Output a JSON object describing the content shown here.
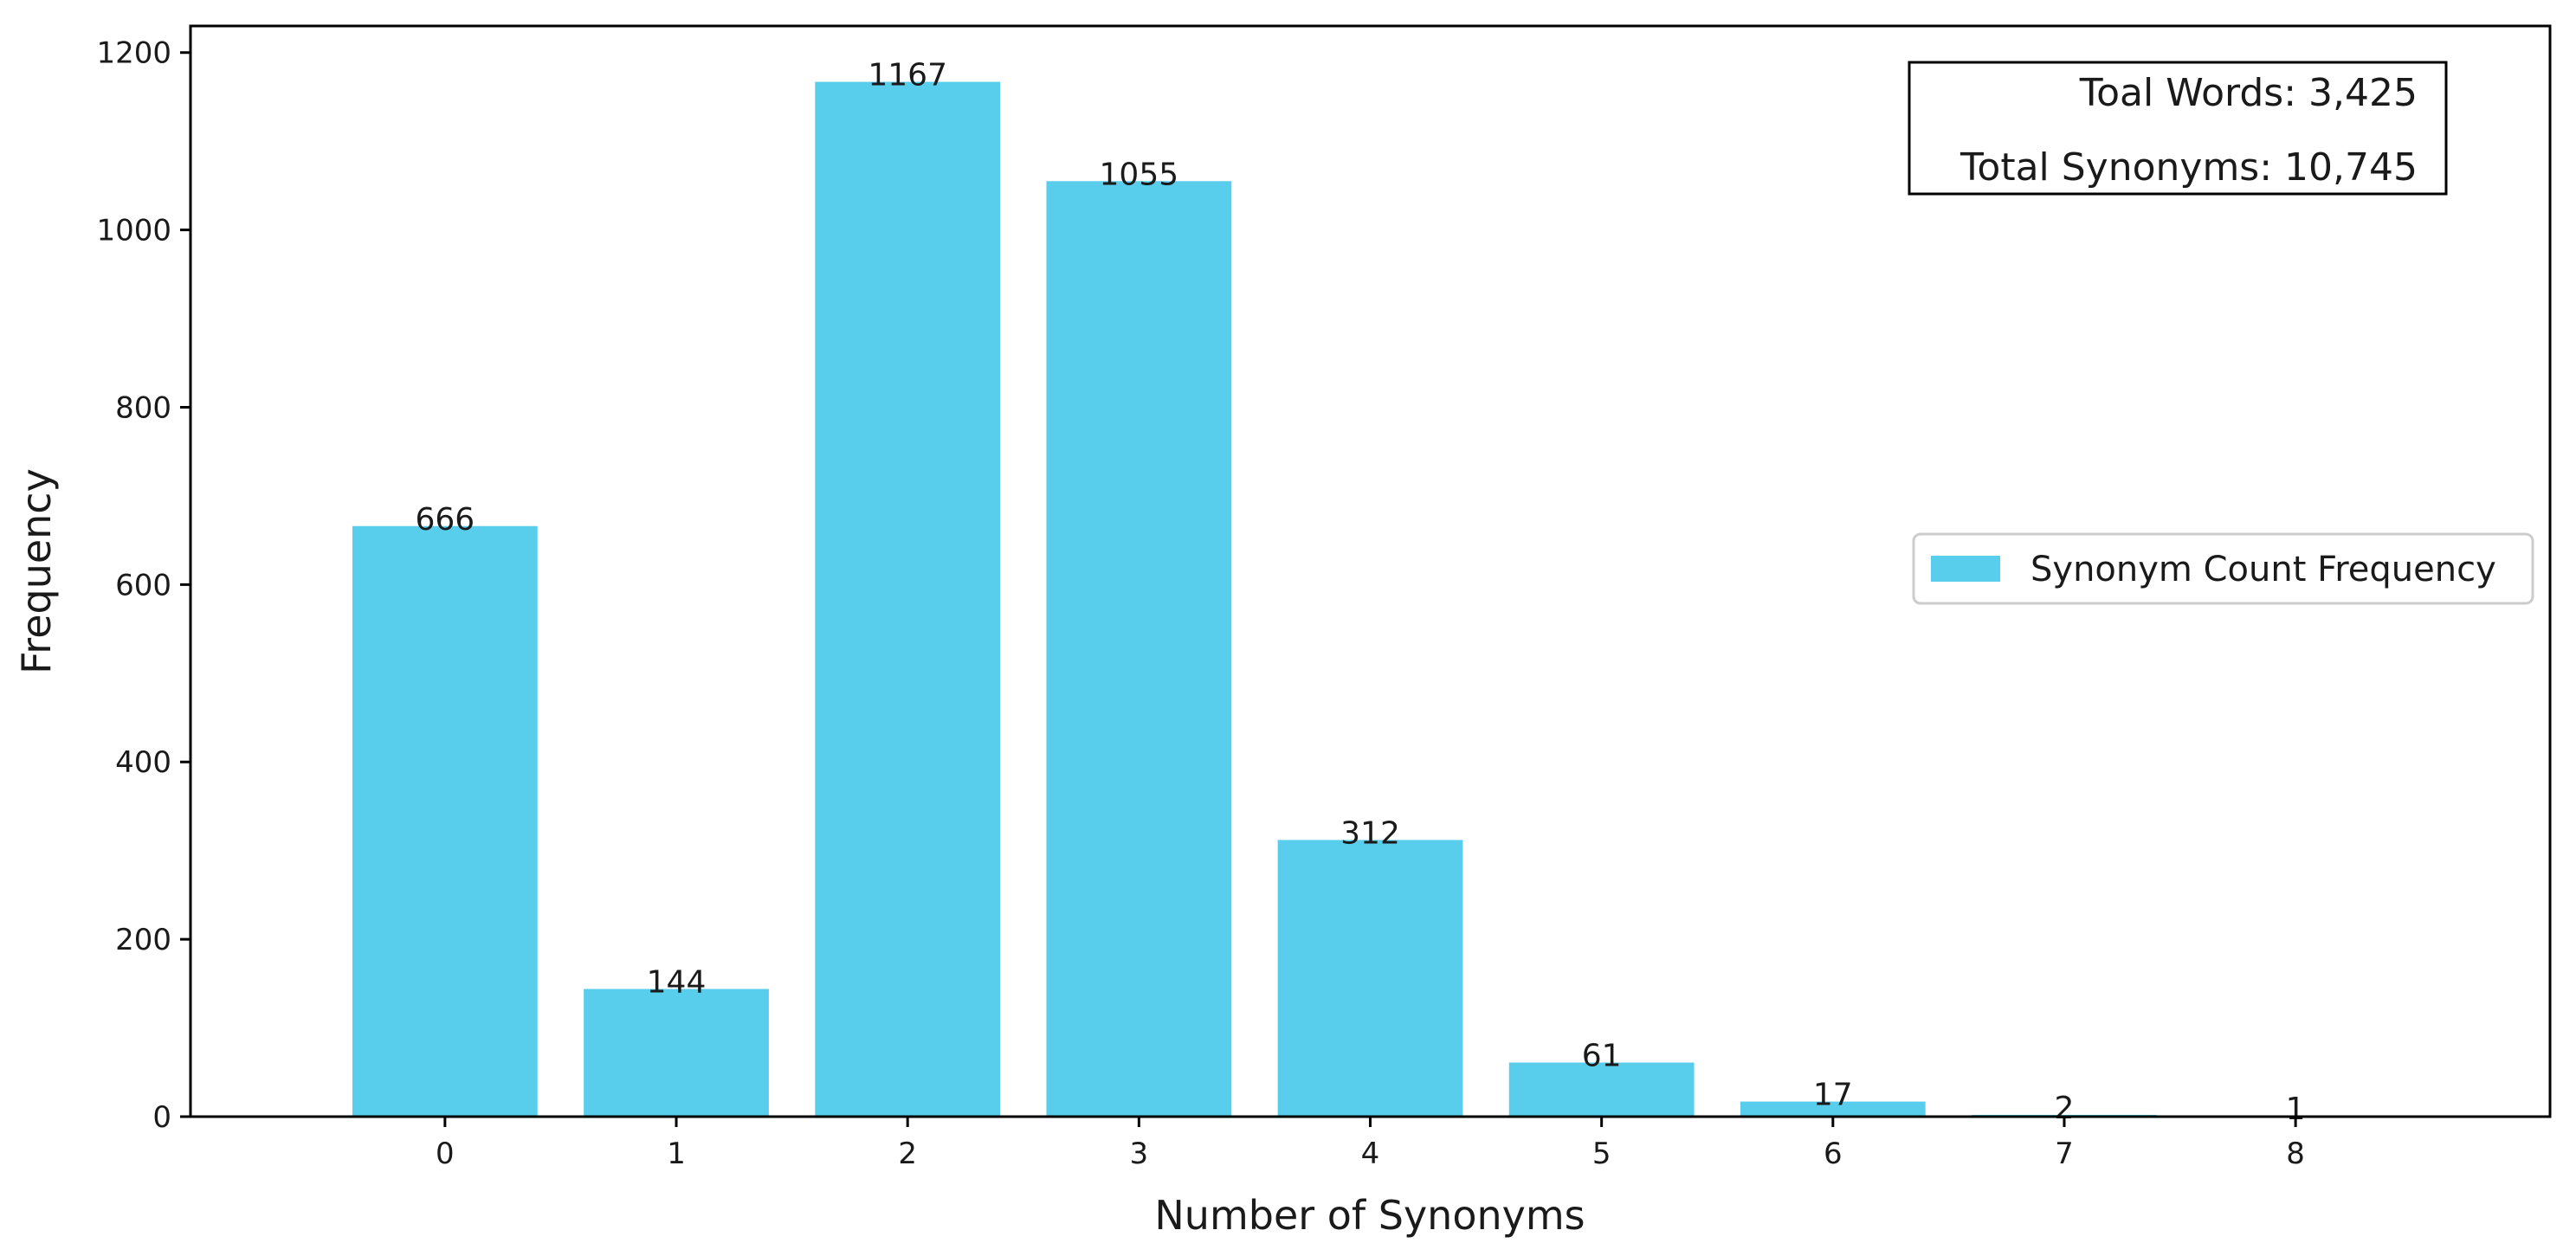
{
  "chart_data": {
    "type": "bar",
    "categories": [
      "0",
      "1",
      "2",
      "3",
      "4",
      "5",
      "6",
      "7",
      "8"
    ],
    "series": [
      {
        "name": "Synonym Count Frequency",
        "values": [
          666,
          144,
          1167,
          1055,
          312,
          61,
          17,
          2,
          1
        ]
      }
    ],
    "xlabel": "Number of Synonyms",
    "ylabel": "Frequency",
    "ylim": [
      0,
      1230
    ],
    "yticks": [
      0,
      200,
      400,
      600,
      800,
      1000,
      1200
    ],
    "bar_color": "#59cdec",
    "legend_position": "center-right",
    "annotation_box": {
      "lines": [
        "Toal Words: 3,425",
        "Total Synonyms: 10,745"
      ],
      "position": "top-right"
    },
    "grid": false
  }
}
